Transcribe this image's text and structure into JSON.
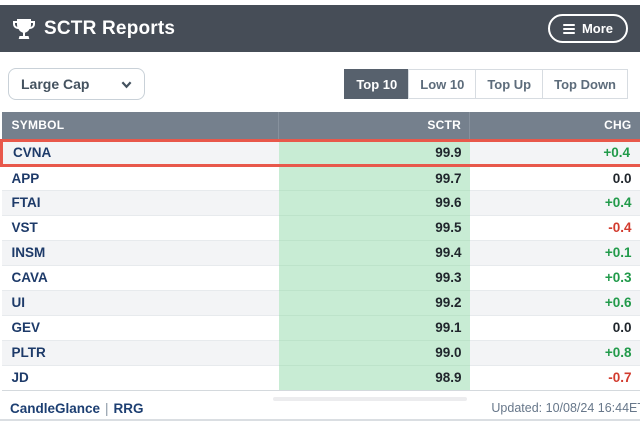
{
  "header": {
    "title": "SCTR Reports",
    "more_label": "More"
  },
  "controls": {
    "group_selector": {
      "value": "Large Cap"
    },
    "tabs": [
      {
        "label": "Top 10",
        "active": true
      },
      {
        "label": "Low 10",
        "active": false
      },
      {
        "label": "Top Up",
        "active": false
      },
      {
        "label": "Top Down",
        "active": false
      }
    ]
  },
  "table": {
    "columns": [
      "SYMBOL",
      "SCTR",
      "CHG"
    ],
    "rows": [
      {
        "symbol": "CVNA",
        "sctr": "99.9",
        "chg": "+0.4",
        "chg_class": "pos",
        "highlighted": true
      },
      {
        "symbol": "APP",
        "sctr": "99.7",
        "chg": "0.0",
        "chg_class": "zero",
        "highlighted": false
      },
      {
        "symbol": "FTAI",
        "sctr": "99.6",
        "chg": "+0.4",
        "chg_class": "pos",
        "highlighted": false
      },
      {
        "symbol": "VST",
        "sctr": "99.5",
        "chg": "-0.4",
        "chg_class": "neg",
        "highlighted": false
      },
      {
        "symbol": "INSM",
        "sctr": "99.4",
        "chg": "+0.1",
        "chg_class": "pos",
        "highlighted": false
      },
      {
        "symbol": "CAVA",
        "sctr": "99.3",
        "chg": "+0.3",
        "chg_class": "pos",
        "highlighted": false
      },
      {
        "symbol": "UI",
        "sctr": "99.2",
        "chg": "+0.6",
        "chg_class": "pos",
        "highlighted": false
      },
      {
        "symbol": "GEV",
        "sctr": "99.1",
        "chg": "0.0",
        "chg_class": "zero",
        "highlighted": false
      },
      {
        "symbol": "PLTR",
        "sctr": "99.0",
        "chg": "+0.8",
        "chg_class": "pos",
        "highlighted": false
      },
      {
        "symbol": "JD",
        "sctr": "98.9",
        "chg": "-0.7",
        "chg_class": "neg",
        "highlighted": false
      }
    ]
  },
  "footer": {
    "link_candleglance": "CandleGlance",
    "separator": "|",
    "link_rrg": "RRG",
    "updated": "Updated: 10/08/24 16:44ET"
  },
  "colors": {
    "appbar": "#464d57",
    "table_header": "#75808d",
    "sctr_cell": "#c8ecd4",
    "chg_positive": "#219a4a",
    "chg_negative": "#d23b2e",
    "highlight_border": "#e8584b",
    "tab_active": "#57616d",
    "link": "#1d3f72"
  }
}
